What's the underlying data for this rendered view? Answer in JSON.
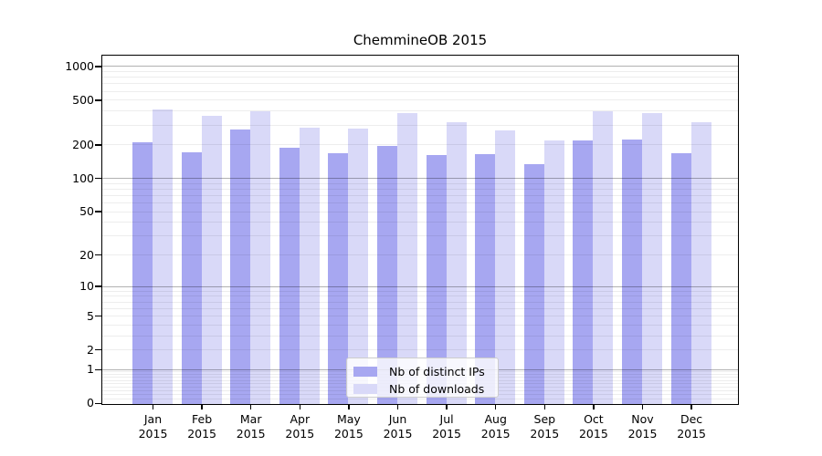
{
  "chart_data": {
    "type": "bar",
    "title": "ChemmineOB 2015",
    "x": {
      "months": [
        "Jan",
        "Feb",
        "Mar",
        "Apr",
        "May",
        "Jun",
        "Jul",
        "Aug",
        "Sep",
        "Oct",
        "Nov",
        "Dec"
      ],
      "year": "2015"
    },
    "series": [
      {
        "name": "Nb of distinct IPs",
        "color": "#a7a7f1",
        "values": [
          213,
          172,
          279,
          189,
          171,
          198,
          164,
          166,
          136,
          223,
          225,
          171
        ]
      },
      {
        "name": "Nb of downloads",
        "color": "#d9d9f8",
        "values": [
          419,
          368,
          403,
          288,
          283,
          390,
          320,
          273,
          221,
          405,
          390,
          324
        ]
      }
    ],
    "y_axis": {
      "scale": "log1p",
      "tick_values": [
        0,
        1,
        2,
        5,
        10,
        20,
        50,
        100,
        200,
        500,
        1000
      ],
      "tick_labels": [
        "0",
        "1",
        "2",
        "5",
        "10",
        "20",
        "50",
        "100",
        "200",
        "500",
        "1000"
      ],
      "max_value": 1236
    },
    "grid": {
      "major_values": [
        1,
        10,
        100,
        1000
      ],
      "minor_values": [
        0.1,
        0.2,
        0.3,
        0.4,
        0.5,
        0.6,
        0.7,
        0.8,
        0.9,
        2,
        3,
        4,
        5,
        6,
        7,
        8,
        9,
        20,
        30,
        40,
        50,
        60,
        70,
        80,
        90,
        200,
        300,
        400,
        500,
        600,
        700,
        800,
        900
      ]
    },
    "legend": {
      "position": "lower-center",
      "items": [
        {
          "label": "Nb of distinct IPs",
          "color": "#a7a7f1"
        },
        {
          "label": "Nb of downloads",
          "color": "#d9d9f8"
        }
      ]
    }
  }
}
